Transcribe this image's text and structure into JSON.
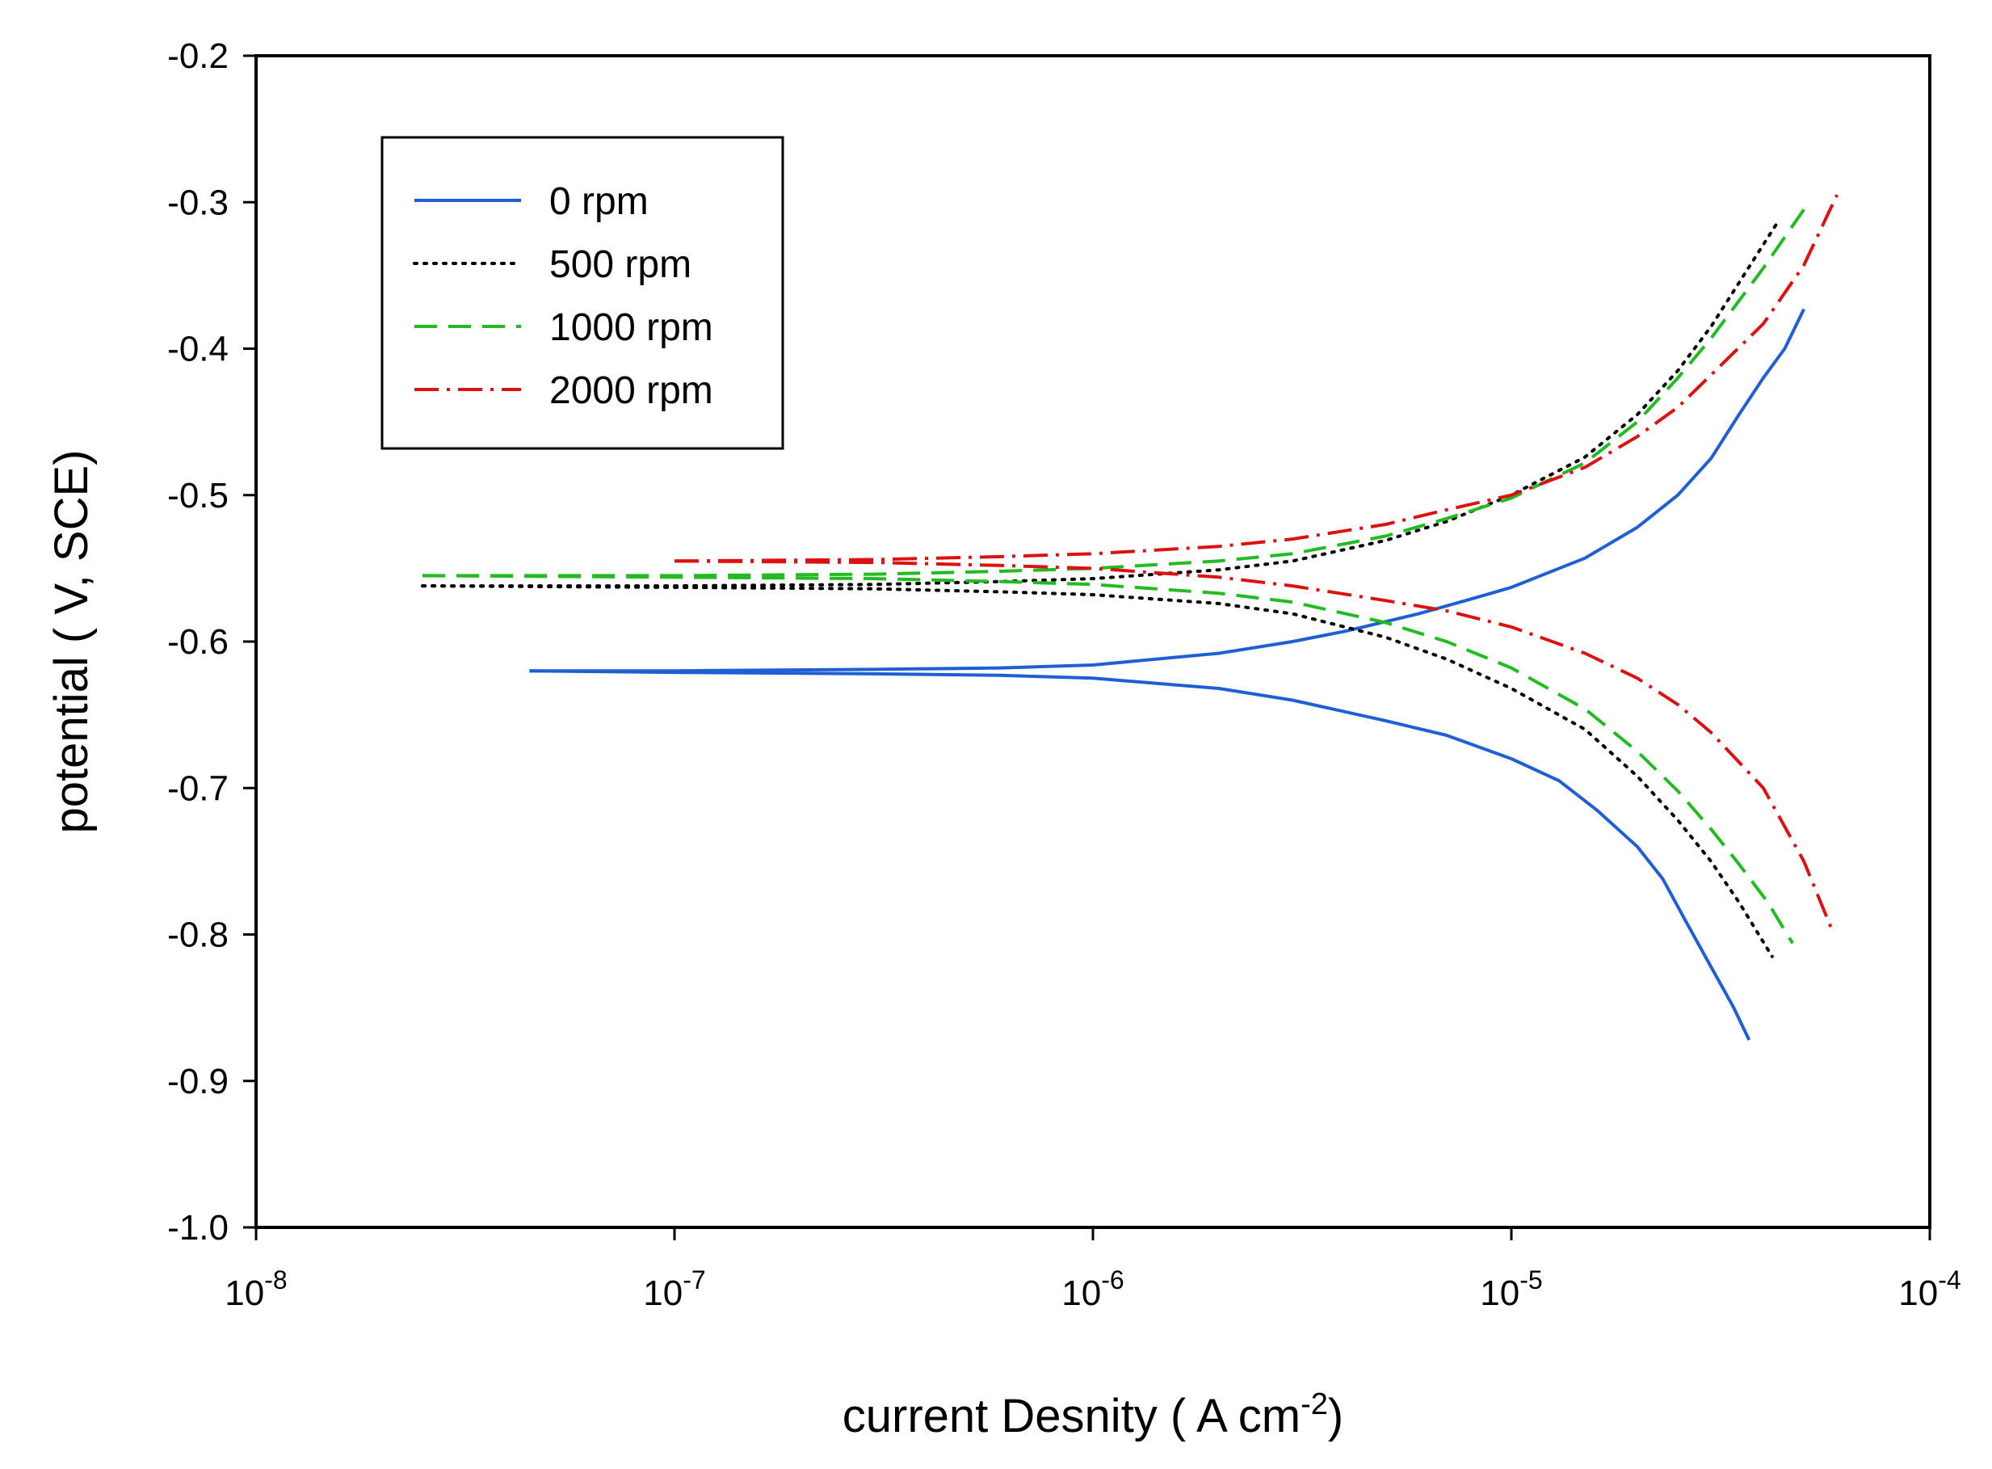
{
  "chart_data": {
    "type": "line",
    "xscale": "log",
    "xlabel": "current Desnity ( A cm",
    "xlabel_sup": "-2",
    "xlabel_close": ")",
    "ylabel": "potential ( V, SCE)",
    "xlim": [
      1e-08,
      0.0001
    ],
    "ylim": [
      -1.0,
      -0.2
    ],
    "x_ticks": [
      {
        "base": "10",
        "exp": "-8"
      },
      {
        "base": "10",
        "exp": "-7"
      },
      {
        "base": "10",
        "exp": "-6"
      },
      {
        "base": "10",
        "exp": "-5"
      },
      {
        "base": "10",
        "exp": "-4"
      }
    ],
    "y_ticks": [
      {
        "value": -0.2,
        "label": "-0.2"
      },
      {
        "value": -0.3,
        "label": "-0.3"
      },
      {
        "value": -0.4,
        "label": "-0.4"
      },
      {
        "value": -0.5,
        "label": "-0.5"
      },
      {
        "value": -0.6,
        "label": "-0.6"
      },
      {
        "value": -0.7,
        "label": "-0.7"
      },
      {
        "value": -0.8,
        "label": "-0.8"
      },
      {
        "value": -0.9,
        "label": "-0.9"
      },
      {
        "value": -1.0,
        "label": "-1.0"
      }
    ],
    "legend_position": "top-left",
    "series": [
      {
        "name": "0 rpm",
        "color": "#1f5fd6",
        "style": "solid",
        "anodic": [
          [
            4.5e-08,
            -0.62
          ],
          [
            1e-07,
            -0.62
          ],
          [
            3e-07,
            -0.619
          ],
          [
            6e-07,
            -0.618
          ],
          [
            1e-06,
            -0.616
          ],
          [
            2e-06,
            -0.608
          ],
          [
            3e-06,
            -0.6
          ],
          [
            4e-06,
            -0.593
          ],
          [
            6e-06,
            -0.581
          ],
          [
            8e-06,
            -0.571
          ],
          [
            1e-05,
            -0.563
          ],
          [
            1.5e-05,
            -0.543
          ],
          [
            2e-05,
            -0.522
          ],
          [
            2.5e-05,
            -0.5
          ],
          [
            3e-05,
            -0.475
          ],
          [
            3.5e-05,
            -0.445
          ],
          [
            4e-05,
            -0.42
          ],
          [
            4.5e-05,
            -0.4
          ],
          [
            5e-05,
            -0.373
          ]
        ],
        "cathodic": [
          [
            4.5e-08,
            -0.62
          ],
          [
            1e-07,
            -0.621
          ],
          [
            3e-07,
            -0.622
          ],
          [
            6e-07,
            -0.623
          ],
          [
            1e-06,
            -0.625
          ],
          [
            2e-06,
            -0.632
          ],
          [
            3e-06,
            -0.64
          ],
          [
            5e-06,
            -0.654
          ],
          [
            7e-06,
            -0.664
          ],
          [
            1e-05,
            -0.68
          ],
          [
            1.3e-05,
            -0.695
          ],
          [
            1.6e-05,
            -0.715
          ],
          [
            2e-05,
            -0.74
          ],
          [
            2.3e-05,
            -0.762
          ],
          [
            2.6e-05,
            -0.79
          ],
          [
            3e-05,
            -0.822
          ],
          [
            3.4e-05,
            -0.85
          ],
          [
            3.7e-05,
            -0.872
          ]
        ]
      },
      {
        "name": "500 rpm",
        "color": "#000000",
        "style": "dotted",
        "anodic": [
          [
            2.5e-08,
            -0.562
          ],
          [
            1e-07,
            -0.562
          ],
          [
            3e-07,
            -0.561
          ],
          [
            6e-07,
            -0.559
          ],
          [
            1e-06,
            -0.557
          ],
          [
            2e-06,
            -0.551
          ],
          [
            3e-06,
            -0.545
          ],
          [
            5e-06,
            -0.531
          ],
          [
            7e-06,
            -0.518
          ],
          [
            1e-05,
            -0.5
          ],
          [
            1.5e-05,
            -0.474
          ],
          [
            2e-05,
            -0.445
          ],
          [
            2.5e-05,
            -0.415
          ],
          [
            3e-05,
            -0.385
          ],
          [
            3.5e-05,
            -0.355
          ],
          [
            4.3e-05,
            -0.315
          ]
        ],
        "cathodic": [
          [
            2.5e-08,
            -0.562
          ],
          [
            1e-07,
            -0.563
          ],
          [
            3e-07,
            -0.564
          ],
          [
            6e-07,
            -0.566
          ],
          [
            1e-06,
            -0.568
          ],
          [
            2e-06,
            -0.574
          ],
          [
            3e-06,
            -0.581
          ],
          [
            5e-06,
            -0.597
          ],
          [
            7e-06,
            -0.612
          ],
          [
            1e-05,
            -0.632
          ],
          [
            1.5e-05,
            -0.66
          ],
          [
            2e-05,
            -0.692
          ],
          [
            2.5e-05,
            -0.722
          ],
          [
            3e-05,
            -0.75
          ],
          [
            3.5e-05,
            -0.778
          ],
          [
            4.2e-05,
            -0.815
          ]
        ]
      },
      {
        "name": "1000 rpm",
        "color": "#22bb22",
        "style": "dashed",
        "anodic": [
          [
            2.5e-08,
            -0.555
          ],
          [
            1e-07,
            -0.555
          ],
          [
            3e-07,
            -0.554
          ],
          [
            6e-07,
            -0.552
          ],
          [
            1e-06,
            -0.55
          ],
          [
            2e-06,
            -0.545
          ],
          [
            3e-06,
            -0.54
          ],
          [
            5e-06,
            -0.528
          ],
          [
            7e-06,
            -0.516
          ],
          [
            1e-05,
            -0.502
          ],
          [
            1.5e-05,
            -0.478
          ],
          [
            2e-05,
            -0.45
          ],
          [
            2.5e-05,
            -0.42
          ],
          [
            3e-05,
            -0.393
          ],
          [
            4e-05,
            -0.345
          ],
          [
            5e-05,
            -0.305
          ]
        ],
        "cathodic": [
          [
            2.5e-08,
            -0.555
          ],
          [
            1e-07,
            -0.556
          ],
          [
            3e-07,
            -0.557
          ],
          [
            6e-07,
            -0.559
          ],
          [
            1e-06,
            -0.561
          ],
          [
            2e-06,
            -0.567
          ],
          [
            3e-06,
            -0.573
          ],
          [
            5e-06,
            -0.587
          ],
          [
            7e-06,
            -0.6
          ],
          [
            1e-05,
            -0.618
          ],
          [
            1.5e-05,
            -0.646
          ],
          [
            2e-05,
            -0.675
          ],
          [
            2.5e-05,
            -0.702
          ],
          [
            3e-05,
            -0.728
          ],
          [
            3.5e-05,
            -0.752
          ],
          [
            4.1e-05,
            -0.778
          ],
          [
            4.7e-05,
            -0.806
          ]
        ]
      },
      {
        "name": "2000 rpm",
        "color": "#dd1111",
        "style": "dashdot",
        "anodic": [
          [
            1e-07,
            -0.545
          ],
          [
            3e-07,
            -0.544
          ],
          [
            6e-07,
            -0.542
          ],
          [
            1e-06,
            -0.54
          ],
          [
            2e-06,
            -0.535
          ],
          [
            3e-06,
            -0.53
          ],
          [
            5e-06,
            -0.52
          ],
          [
            7e-06,
            -0.51
          ],
          [
            1e-05,
            -0.5
          ],
          [
            1.5e-05,
            -0.481
          ],
          [
            2e-05,
            -0.46
          ],
          [
            2.5e-05,
            -0.44
          ],
          [
            3e-05,
            -0.418
          ],
          [
            4e-05,
            -0.383
          ],
          [
            5e-05,
            -0.343
          ],
          [
            6e-05,
            -0.295
          ]
        ],
        "cathodic": [
          [
            1e-07,
            -0.545
          ],
          [
            3e-07,
            -0.546
          ],
          [
            6e-07,
            -0.548
          ],
          [
            1e-06,
            -0.55
          ],
          [
            2e-06,
            -0.556
          ],
          [
            3e-06,
            -0.562
          ],
          [
            5e-06,
            -0.572
          ],
          [
            7e-06,
            -0.579
          ],
          [
            1e-05,
            -0.59
          ],
          [
            1.5e-05,
            -0.608
          ],
          [
            2e-05,
            -0.625
          ],
          [
            2.5e-05,
            -0.643
          ],
          [
            3e-05,
            -0.662
          ],
          [
            4e-05,
            -0.7
          ],
          [
            5e-05,
            -0.75
          ],
          [
            5.8e-05,
            -0.795
          ]
        ]
      }
    ]
  }
}
